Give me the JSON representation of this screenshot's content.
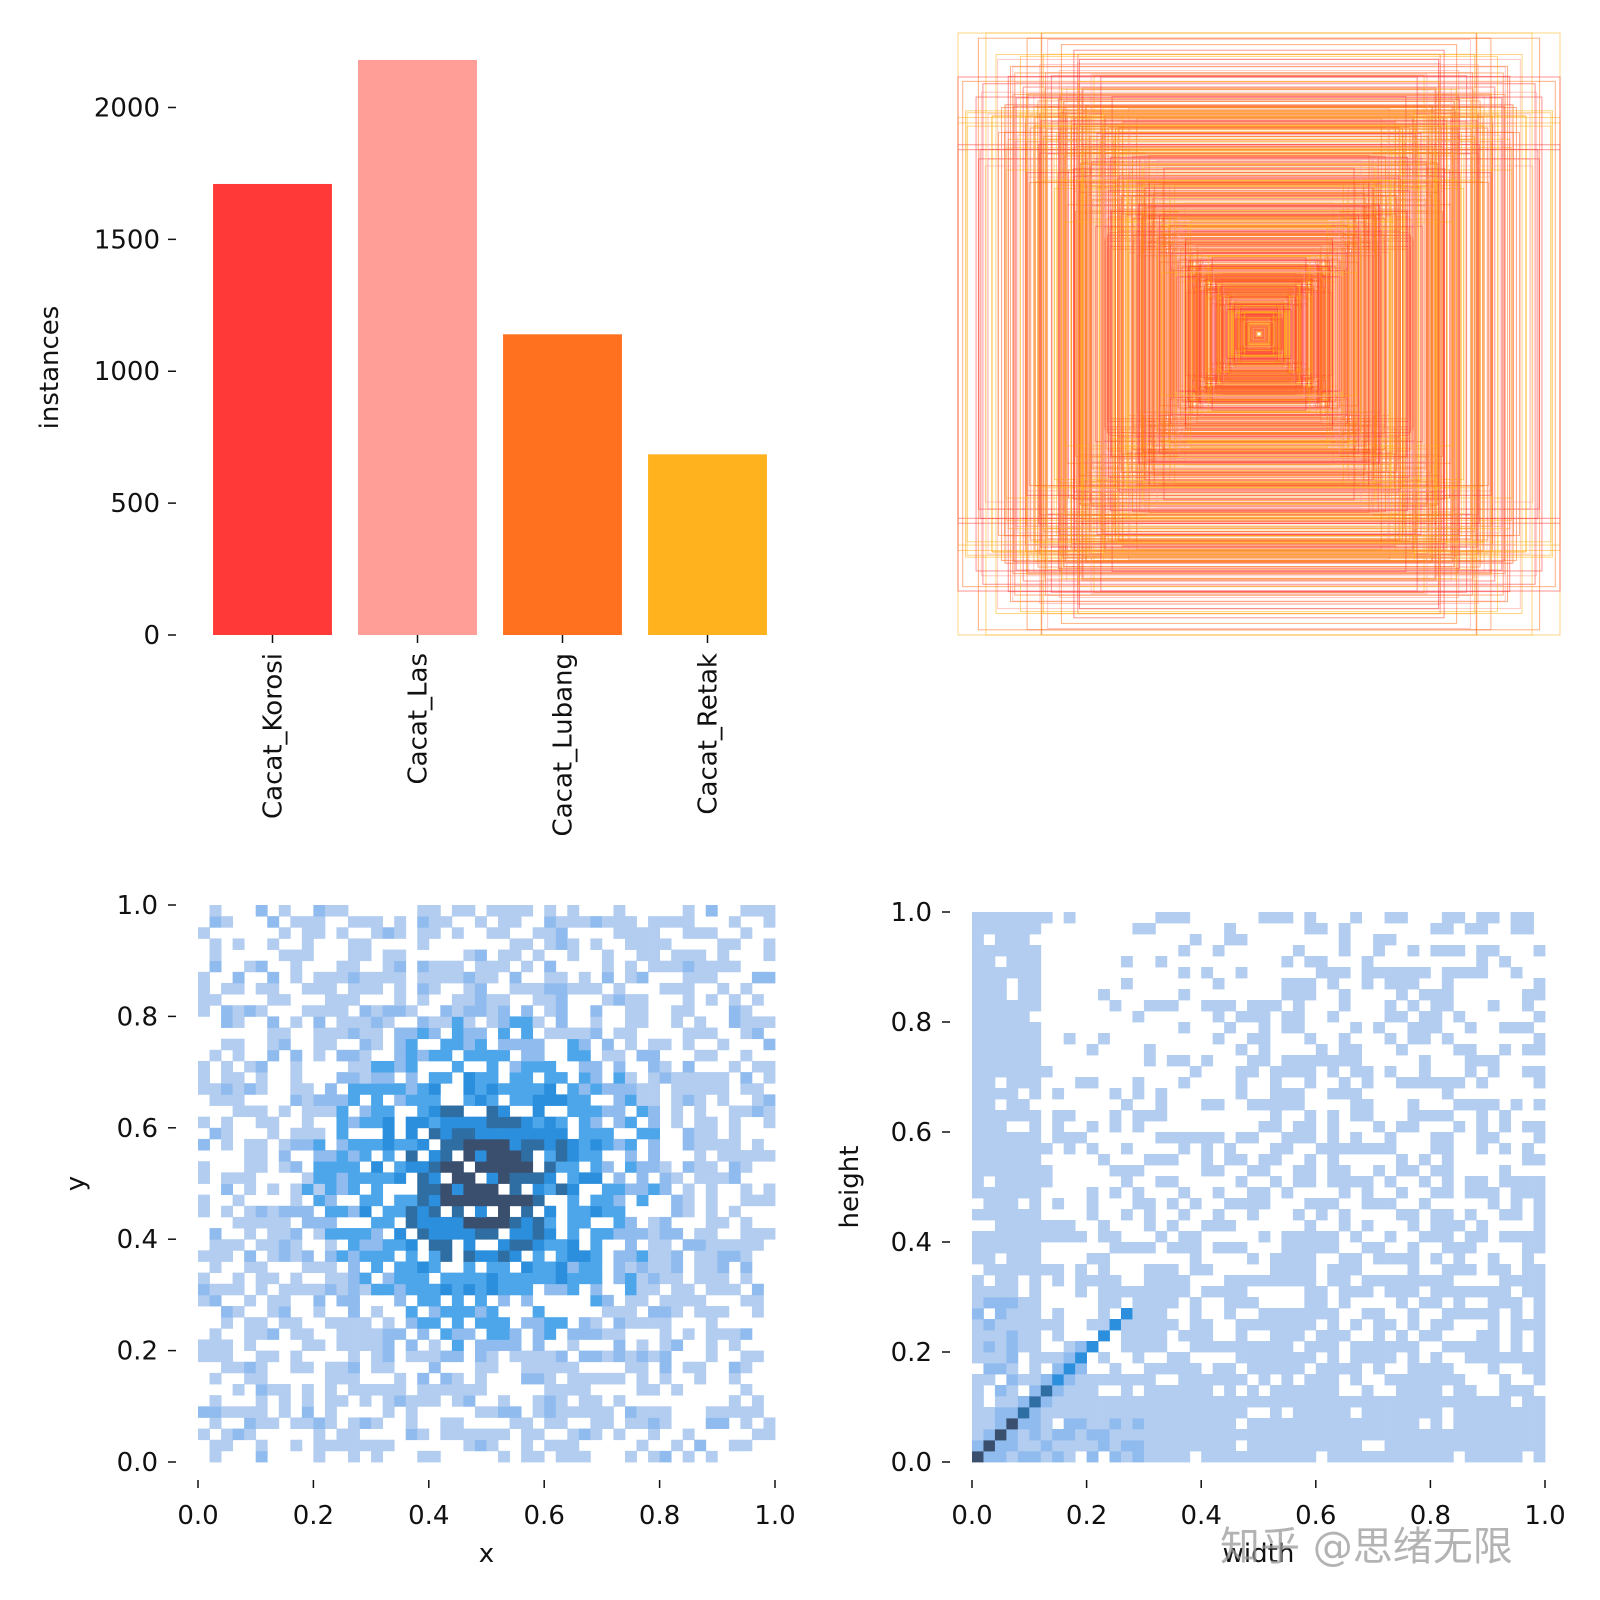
{
  "watermark": "知乎 @思绪无限",
  "chart_data": [
    {
      "id": "class-counts",
      "type": "bar",
      "categories": [
        "Cacat_Korosi",
        "Cacat_Las",
        "Cacat_Lubang",
        "Cacat_Retak"
      ],
      "values": [
        1710,
        2180,
        1140,
        685
      ],
      "colors": [
        "#ff3838",
        "#ff9d97",
        "#ff701f",
        "#ffb21d"
      ],
      "xlabel": "",
      "ylabel": "instances",
      "ylim": [
        0,
        2180
      ],
      "yticks": [
        0,
        500,
        1000,
        1500,
        2000
      ],
      "grid": false
    },
    {
      "id": "box-overlay",
      "type": "other",
      "description_free": true,
      "box_count": 900,
      "palette": [
        "#ff3838",
        "#ff9d97",
        "#ff701f",
        "#ffb21d"
      ],
      "axes_visible": false
    },
    {
      "id": "xy-histogram",
      "type": "heatmap",
      "xlabel": "x",
      "ylabel": "y",
      "xlim": [
        0.0,
        1.0
      ],
      "ylim": [
        0.0,
        1.0
      ],
      "xticks": [
        "0.0",
        "0.2",
        "0.4",
        "0.6",
        "0.8",
        "1.0"
      ],
      "yticks": [
        "0.0",
        "0.2",
        "0.4",
        "0.6",
        "0.8",
        "1.0"
      ],
      "bins": 50,
      "center": [
        0.5,
        0.5
      ],
      "colormap": [
        "#b3cdf0",
        "#8fbbee",
        "#4ea6ea",
        "#2b8fdd",
        "#2f6ea3",
        "#3a4e6e"
      ],
      "grid": false
    },
    {
      "id": "wh-histogram",
      "type": "heatmap",
      "xlabel": "width",
      "ylabel": "height",
      "xlim": [
        0.0,
        1.0
      ],
      "ylim": [
        0.0,
        1.0
      ],
      "xticks": [
        "0.0",
        "0.2",
        "0.4",
        "0.6",
        "0.8",
        "1.0"
      ],
      "yticks": [
        "0.0",
        "0.2",
        "0.4",
        "0.6",
        "0.8",
        "1.0"
      ],
      "bins": 50,
      "note_free": true,
      "colormap": [
        "#b3cdf0",
        "#8fbbee",
        "#4ea6ea",
        "#2b8fdd",
        "#2f6ea3",
        "#3a4e6e"
      ],
      "grid": false
    }
  ]
}
